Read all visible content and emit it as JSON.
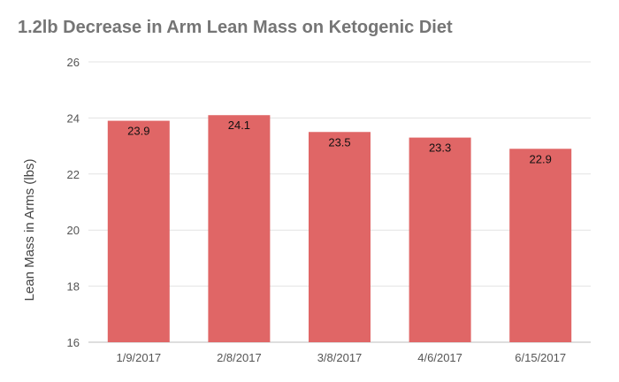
{
  "chart_data": {
    "type": "bar",
    "title": "1.2lb Decrease in Arm Lean Mass on Ketogenic Diet",
    "xlabel": "",
    "ylabel": "Lean Mass in Arms (lbs)",
    "categories": [
      "1/9/2017",
      "2/8/2017",
      "3/8/2017",
      "4/6/2017",
      "6/15/2017"
    ],
    "values": [
      23.9,
      24.1,
      23.5,
      23.3,
      22.9
    ],
    "data_labels": [
      "23.9",
      "24.1",
      "23.5",
      "23.3",
      "22.9"
    ],
    "ylim": [
      16,
      26
    ],
    "yticks": [
      16,
      18,
      20,
      22,
      24,
      26
    ],
    "grid": true,
    "legend": "none",
    "bar_color": "#e06666"
  }
}
